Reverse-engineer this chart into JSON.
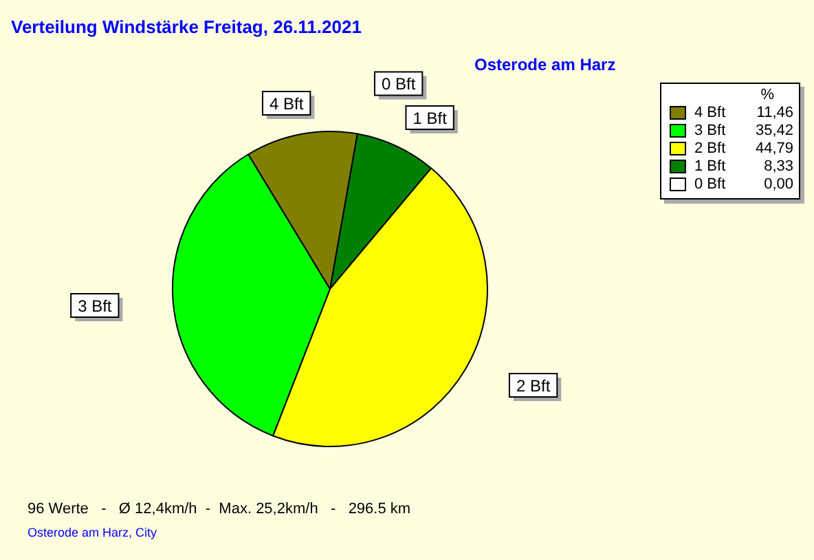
{
  "chart_data": {
    "type": "pie",
    "title": "Verteilung Windstärke  Freitag, 26.11.2021",
    "subtitle": "Osterode am Harz",
    "categories": [
      "4 Bft",
      "3 Bft",
      "2 Bft",
      "1 Bft",
      "0 Bft"
    ],
    "values": [
      11.46,
      35.42,
      44.79,
      8.33,
      0
    ],
    "value_labels": [
      "11,46",
      "35,42",
      "44,79",
      "8,33",
      "0,00"
    ],
    "colors": [
      "#808000",
      "#00ff00",
      "#ffff00",
      "#008000",
      "#ffffff"
    ],
    "legend": "top right",
    "legend_title": "%",
    "annotations": [
      "96 Werte   -   Ø 12,4km/h  -  Max. 25,2km/h   -   296.5 km",
      "Osterode am Harz, City"
    ]
  }
}
